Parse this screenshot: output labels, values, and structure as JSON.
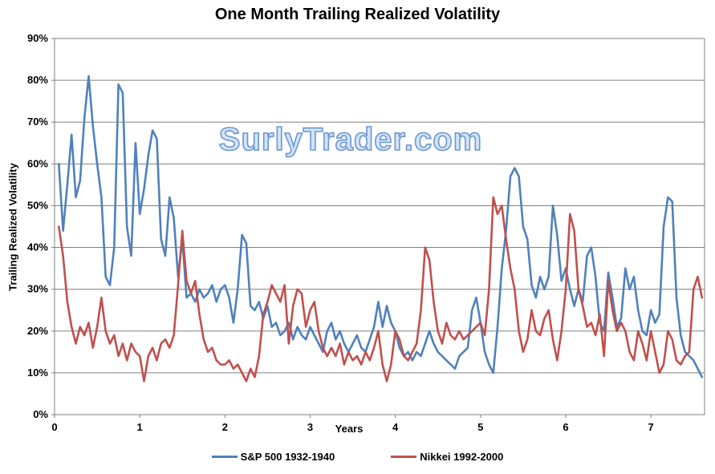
{
  "title": "One Month Trailing Realized Volatility",
  "watermark": "SurlyTrader.com",
  "colors": {
    "background": "#ffffff",
    "gridline": "#808080",
    "plot_border": "#808080",
    "text": "#000000",
    "watermark_fill": "#d3e4f8",
    "watermark_outline": "#6b97d4",
    "sp500": "#4F81BD",
    "nikkei": "#C0504D"
  },
  "y_axis": {
    "title": "Trailing Realized Volatility",
    "ticks": [
      "0%",
      "10%",
      "20%",
      "30%",
      "40%",
      "50%",
      "60%",
      "70%",
      "80%",
      "90%"
    ],
    "min": 0,
    "max": 90,
    "step": 10
  },
  "x_axis": {
    "title": "Years",
    "ticks": [
      "0",
      "1",
      "2",
      "3",
      "4",
      "5",
      "6",
      "7"
    ],
    "min": 0,
    "max": 7.63,
    "tick_step": 1
  },
  "chart_data": {
    "type": "line",
    "title": "One Month Trailing Realized Volatility",
    "xlabel": "Years",
    "ylabel": "Trailing Realized Volatility",
    "xlim": [
      0,
      7.63
    ],
    "ylim": [
      0,
      90
    ],
    "y_unit": "%",
    "grid": "horizontal",
    "legend_position": "bottom",
    "x_start": 0.05,
    "x_step": 0.05,
    "series": [
      {
        "name": "S&P 500 1932-1940",
        "color": "#4F81BD",
        "values": [
          60,
          44,
          55,
          67,
          52,
          56,
          71,
          81,
          69,
          60,
          52,
          33,
          31,
          40,
          79,
          77,
          45,
          38,
          65,
          48,
          54,
          62,
          68,
          66,
          42,
          38,
          52,
          47,
          33,
          42,
          28,
          29,
          27,
          30,
          28,
          29,
          31,
          27,
          30,
          31,
          28,
          22,
          30,
          43,
          41,
          26,
          25,
          27,
          23,
          26,
          21,
          22,
          19,
          20,
          22,
          18,
          21,
          19,
          18,
          21,
          19,
          17,
          15,
          20,
          22,
          18,
          20,
          17,
          15,
          17,
          19,
          16,
          15,
          18,
          21,
          27,
          21,
          26,
          22,
          20,
          16,
          14,
          15,
          13,
          15,
          14,
          17,
          20,
          17,
          15,
          14,
          13,
          12,
          11,
          14,
          15,
          16,
          25,
          28,
          22,
          15,
          12,
          10,
          21,
          35,
          44,
          57,
          59,
          57,
          45,
          42,
          31,
          28,
          33,
          30,
          33,
          50,
          43,
          32,
          35,
          30,
          26,
          30,
          27,
          38,
          40,
          33,
          22,
          20,
          34,
          28,
          21,
          23,
          35,
          30,
          33,
          25,
          20,
          19,
          25,
          22,
          24,
          45,
          52,
          51,
          28,
          19,
          15,
          14,
          13,
          11,
          9
        ]
      },
      {
        "name": "Nikkei 1992-2000",
        "color": "#C0504D",
        "values": [
          45,
          38,
          27,
          21,
          17,
          21,
          19,
          22,
          16,
          21,
          28,
          20,
          17,
          19,
          14,
          17,
          13,
          17,
          15,
          14,
          8,
          14,
          16,
          13,
          17,
          18,
          16,
          19,
          31,
          44,
          32,
          29,
          32,
          24,
          18,
          15,
          16,
          13,
          12,
          12,
          13,
          11,
          12,
          10,
          8,
          11,
          9,
          14,
          24,
          27,
          31,
          29,
          27,
          31,
          17,
          26,
          30,
          29,
          21,
          25,
          27,
          20,
          16,
          14,
          16,
          14,
          17,
          12,
          15,
          13,
          14,
          12,
          15,
          13,
          16,
          20,
          12,
          8,
          12,
          20,
          18,
          14,
          13,
          15,
          17,
          25,
          40,
          37,
          27,
          20,
          17,
          22,
          19,
          18,
          20,
          18,
          19,
          20,
          21,
          22,
          19,
          30,
          52,
          48,
          50,
          42,
          35,
          30,
          20,
          15,
          18,
          25,
          20,
          19,
          23,
          25,
          18,
          13,
          20,
          30,
          48,
          44,
          30,
          26,
          21,
          22,
          19,
          24,
          14,
          32,
          25,
          20,
          22,
          20,
          15,
          13,
          20,
          17,
          13,
          20,
          15,
          10,
          12,
          20,
          18,
          13,
          12,
          14,
          15,
          30,
          33,
          28
        ]
      }
    ]
  }
}
